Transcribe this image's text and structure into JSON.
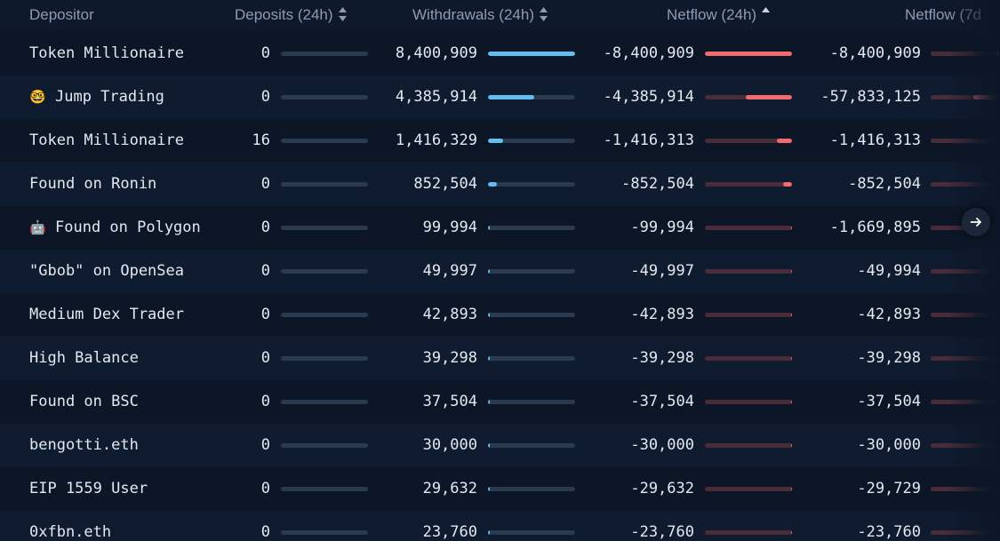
{
  "header": {
    "depositor": "Depositor",
    "deposits": "Deposits (24h)",
    "withdrawals": "Withdrawals (24h)",
    "netflow24": "Netflow (24h)",
    "netflow7": "Netflow (7d"
  },
  "colors": {
    "withdrawal_bar": "#63bdf0",
    "netflow_bar": "#f26a6e",
    "background": "#0c1627"
  },
  "icons": {
    "sort_deposits": "sort-both-icon",
    "sort_withdrawals": "sort-both-icon",
    "sort_netflow": "sort-ascending-icon",
    "scroll": "arrow-right-icon"
  },
  "rows": [
    {
      "emoji": "",
      "depositor": "Token Millionaire",
      "deposits": "0",
      "deposit_fill": 0,
      "withdrawals": "8,400,909",
      "withdrawal_fill": 1.0,
      "netflow24": "-8,400,909",
      "netflow24_fill": 1.0,
      "netflow7": "-8,400,909",
      "netflow7_fill": 0.14
    },
    {
      "emoji": "🤓",
      "depositor": "Jump Trading",
      "deposits": "0",
      "deposit_fill": 0,
      "withdrawals": "4,385,914",
      "withdrawal_fill": 0.53,
      "netflow24": "-4,385,914",
      "netflow24_fill": 0.53,
      "netflow7": "-57,833,125",
      "netflow7_fill": 1.0
    },
    {
      "emoji": "",
      "depositor": "Token Millionaire",
      "deposits": "16",
      "deposit_fill": 0,
      "withdrawals": "1,416,329",
      "withdrawal_fill": 0.17,
      "netflow24": "-1,416,313",
      "netflow24_fill": 0.17,
      "netflow7": "-1,416,313",
      "netflow7_fill": 0.03
    },
    {
      "emoji": "",
      "depositor": "Found on Ronin",
      "deposits": "0",
      "deposit_fill": 0,
      "withdrawals": "852,504",
      "withdrawal_fill": 0.1,
      "netflow24": "-852,504",
      "netflow24_fill": 0.1,
      "netflow7": "-852,504",
      "netflow7_fill": 0.02
    },
    {
      "emoji": "🤖",
      "depositor": "Found on Polygon",
      "deposits": "0",
      "deposit_fill": 0,
      "withdrawals": "99,994",
      "withdrawal_fill": 0.012,
      "netflow24": "-99,994",
      "netflow24_fill": 0.012,
      "netflow7": "-1,669,895",
      "netflow7_fill": 0.03
    },
    {
      "emoji": "",
      "depositor": "\"Gbob\" on OpenSea",
      "deposits": "0",
      "deposit_fill": 0,
      "withdrawals": "49,997",
      "withdrawal_fill": 0.006,
      "netflow24": "-49,997",
      "netflow24_fill": 0.006,
      "netflow7": "-49,994",
      "netflow7_fill": 0.001
    },
    {
      "emoji": "",
      "depositor": "Medium Dex Trader",
      "deposits": "0",
      "deposit_fill": 0,
      "withdrawals": "42,893",
      "withdrawal_fill": 0.005,
      "netflow24": "-42,893",
      "netflow24_fill": 0.005,
      "netflow7": "-42,893",
      "netflow7_fill": 0.001
    },
    {
      "emoji": "",
      "depositor": "High Balance",
      "deposits": "0",
      "deposit_fill": 0,
      "withdrawals": "39,298",
      "withdrawal_fill": 0.005,
      "netflow24": "-39,298",
      "netflow24_fill": 0.005,
      "netflow7": "-39,298",
      "netflow7_fill": 0.001
    },
    {
      "emoji": "",
      "depositor": "Found on BSC",
      "deposits": "0",
      "deposit_fill": 0,
      "withdrawals": "37,504",
      "withdrawal_fill": 0.004,
      "netflow24": "-37,504",
      "netflow24_fill": 0.004,
      "netflow7": "-37,504",
      "netflow7_fill": 0.001
    },
    {
      "emoji": "",
      "depositor": "bengotti.eth",
      "deposits": "0",
      "deposit_fill": 0,
      "withdrawals": "30,000",
      "withdrawal_fill": 0.004,
      "netflow24": "-30,000",
      "netflow24_fill": 0.004,
      "netflow7": "-30,000",
      "netflow7_fill": 0.001
    },
    {
      "emoji": "",
      "depositor": "EIP 1559 User",
      "deposits": "0",
      "deposit_fill": 0,
      "withdrawals": "29,632",
      "withdrawal_fill": 0.004,
      "netflow24": "-29,632",
      "netflow24_fill": 0.004,
      "netflow7": "-29,729",
      "netflow7_fill": 0.001
    },
    {
      "emoji": "",
      "depositor": "0xfbn.eth",
      "deposits": "0",
      "deposit_fill": 0,
      "withdrawals": "23,760",
      "withdrawal_fill": 0.003,
      "netflow24": "-23,760",
      "netflow24_fill": 0.003,
      "netflow7": "-23,760",
      "netflow7_fill": 0.001
    }
  ]
}
